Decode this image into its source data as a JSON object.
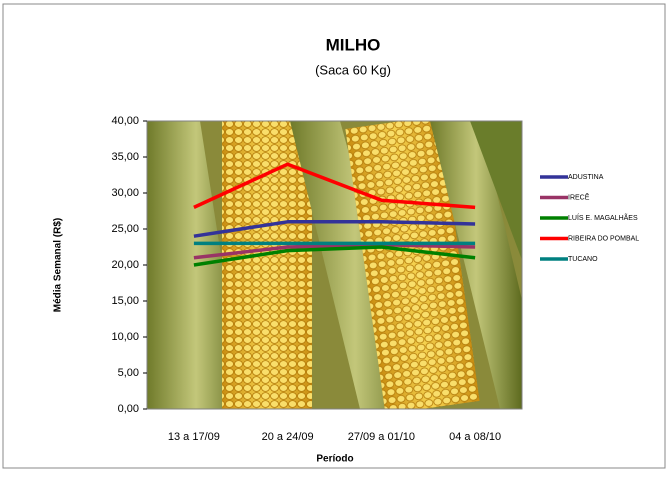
{
  "chart_data": {
    "type": "line",
    "title": "MILHO",
    "subtitle": "(Saca 60 Kg)",
    "x_label": "Período",
    "y_label": "Média Semanal (R$)",
    "categories": [
      "13 a 17/09",
      "20 a 24/09",
      "27/09 a 01/10",
      "04 a 08/10"
    ],
    "series": [
      {
        "name": "ADUSTINA",
        "color": "#333399",
        "values": [
          24,
          26,
          26,
          25.7
        ]
      },
      {
        "name": "IRECÊ",
        "color": "#993366",
        "values": [
          21,
          22.5,
          22.8,
          22.5
        ]
      },
      {
        "name": "LUÍS E. MAGALHÃES",
        "color": "#008000",
        "values": [
          20,
          22,
          22.5,
          21
        ]
      },
      {
        "name": "RIBEIRA DO POMBAL",
        "color": "#ff0000",
        "values": [
          28,
          34,
          29,
          28
        ]
      },
      {
        "name": "TUCANO",
        "color": "#008080",
        "values": [
          23,
          23,
          23,
          23
        ]
      }
    ],
    "ylim": [
      0,
      40
    ],
    "yticks": [
      {
        "value": 0,
        "label": "0,00"
      },
      {
        "value": 5,
        "label": "5,00"
      },
      {
        "value": 10,
        "label": "10,00"
      },
      {
        "value": 15,
        "label": "15,00"
      },
      {
        "value": 20,
        "label": "20,00"
      },
      {
        "value": 25,
        "label": "25,00"
      },
      {
        "value": 30,
        "label": "30,00"
      },
      {
        "value": 35,
        "label": "35,00"
      },
      {
        "value": 40,
        "label": "40,00"
      }
    ],
    "legend": "right"
  }
}
